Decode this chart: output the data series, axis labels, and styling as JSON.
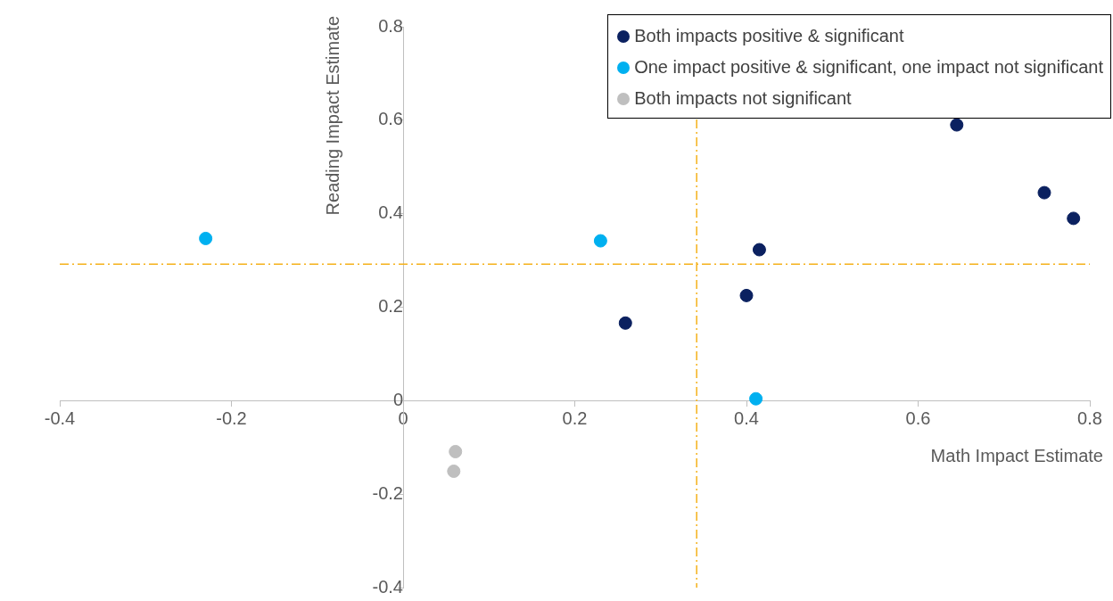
{
  "chart_data": {
    "type": "scatter",
    "xlabel": "Math Impact Estimate",
    "ylabel": "Reading Impact Estimate",
    "xlim": [
      -0.4,
      0.8
    ],
    "xticks": [
      -0.4,
      -0.2,
      0,
      0.2,
      0.4,
      0.6,
      0.8
    ],
    "ylim": [
      -0.4,
      0.8
    ],
    "yticks": [
      -0.4,
      -0.2,
      0,
      0.2,
      0.4,
      0.6,
      0.8
    ],
    "grid": false,
    "legend": "top right",
    "marker": "circle",
    "series": [
      {
        "name": "Both impacts positive & significant",
        "color": "#0b2160",
        "x": [
          0.645,
          0.747,
          0.781,
          0.415,
          0.4,
          0.259
        ],
        "values": [
          0.59,
          0.445,
          0.39,
          0.323,
          0.225,
          0.166
        ]
      },
      {
        "name": "One impact positive & significant, one impact not significant",
        "color": "#00b0f0",
        "x": [
          -0.23,
          0.23,
          0.411
        ],
        "values": [
          0.347,
          0.342,
          0.004
        ]
      },
      {
        "name": "Both impacts not significant",
        "color": "#bfbfbf",
        "x": [
          0.061,
          0.059
        ],
        "values": [
          -0.109,
          -0.151
        ]
      }
    ],
    "ref_lines": [
      {
        "axis": "x",
        "value": 0.342,
        "color": "#f5b21b",
        "line_style": "dashed"
      },
      {
        "axis": "y",
        "value": 0.292,
        "color": "#f5b21b",
        "line_style": "dashed"
      }
    ]
  }
}
